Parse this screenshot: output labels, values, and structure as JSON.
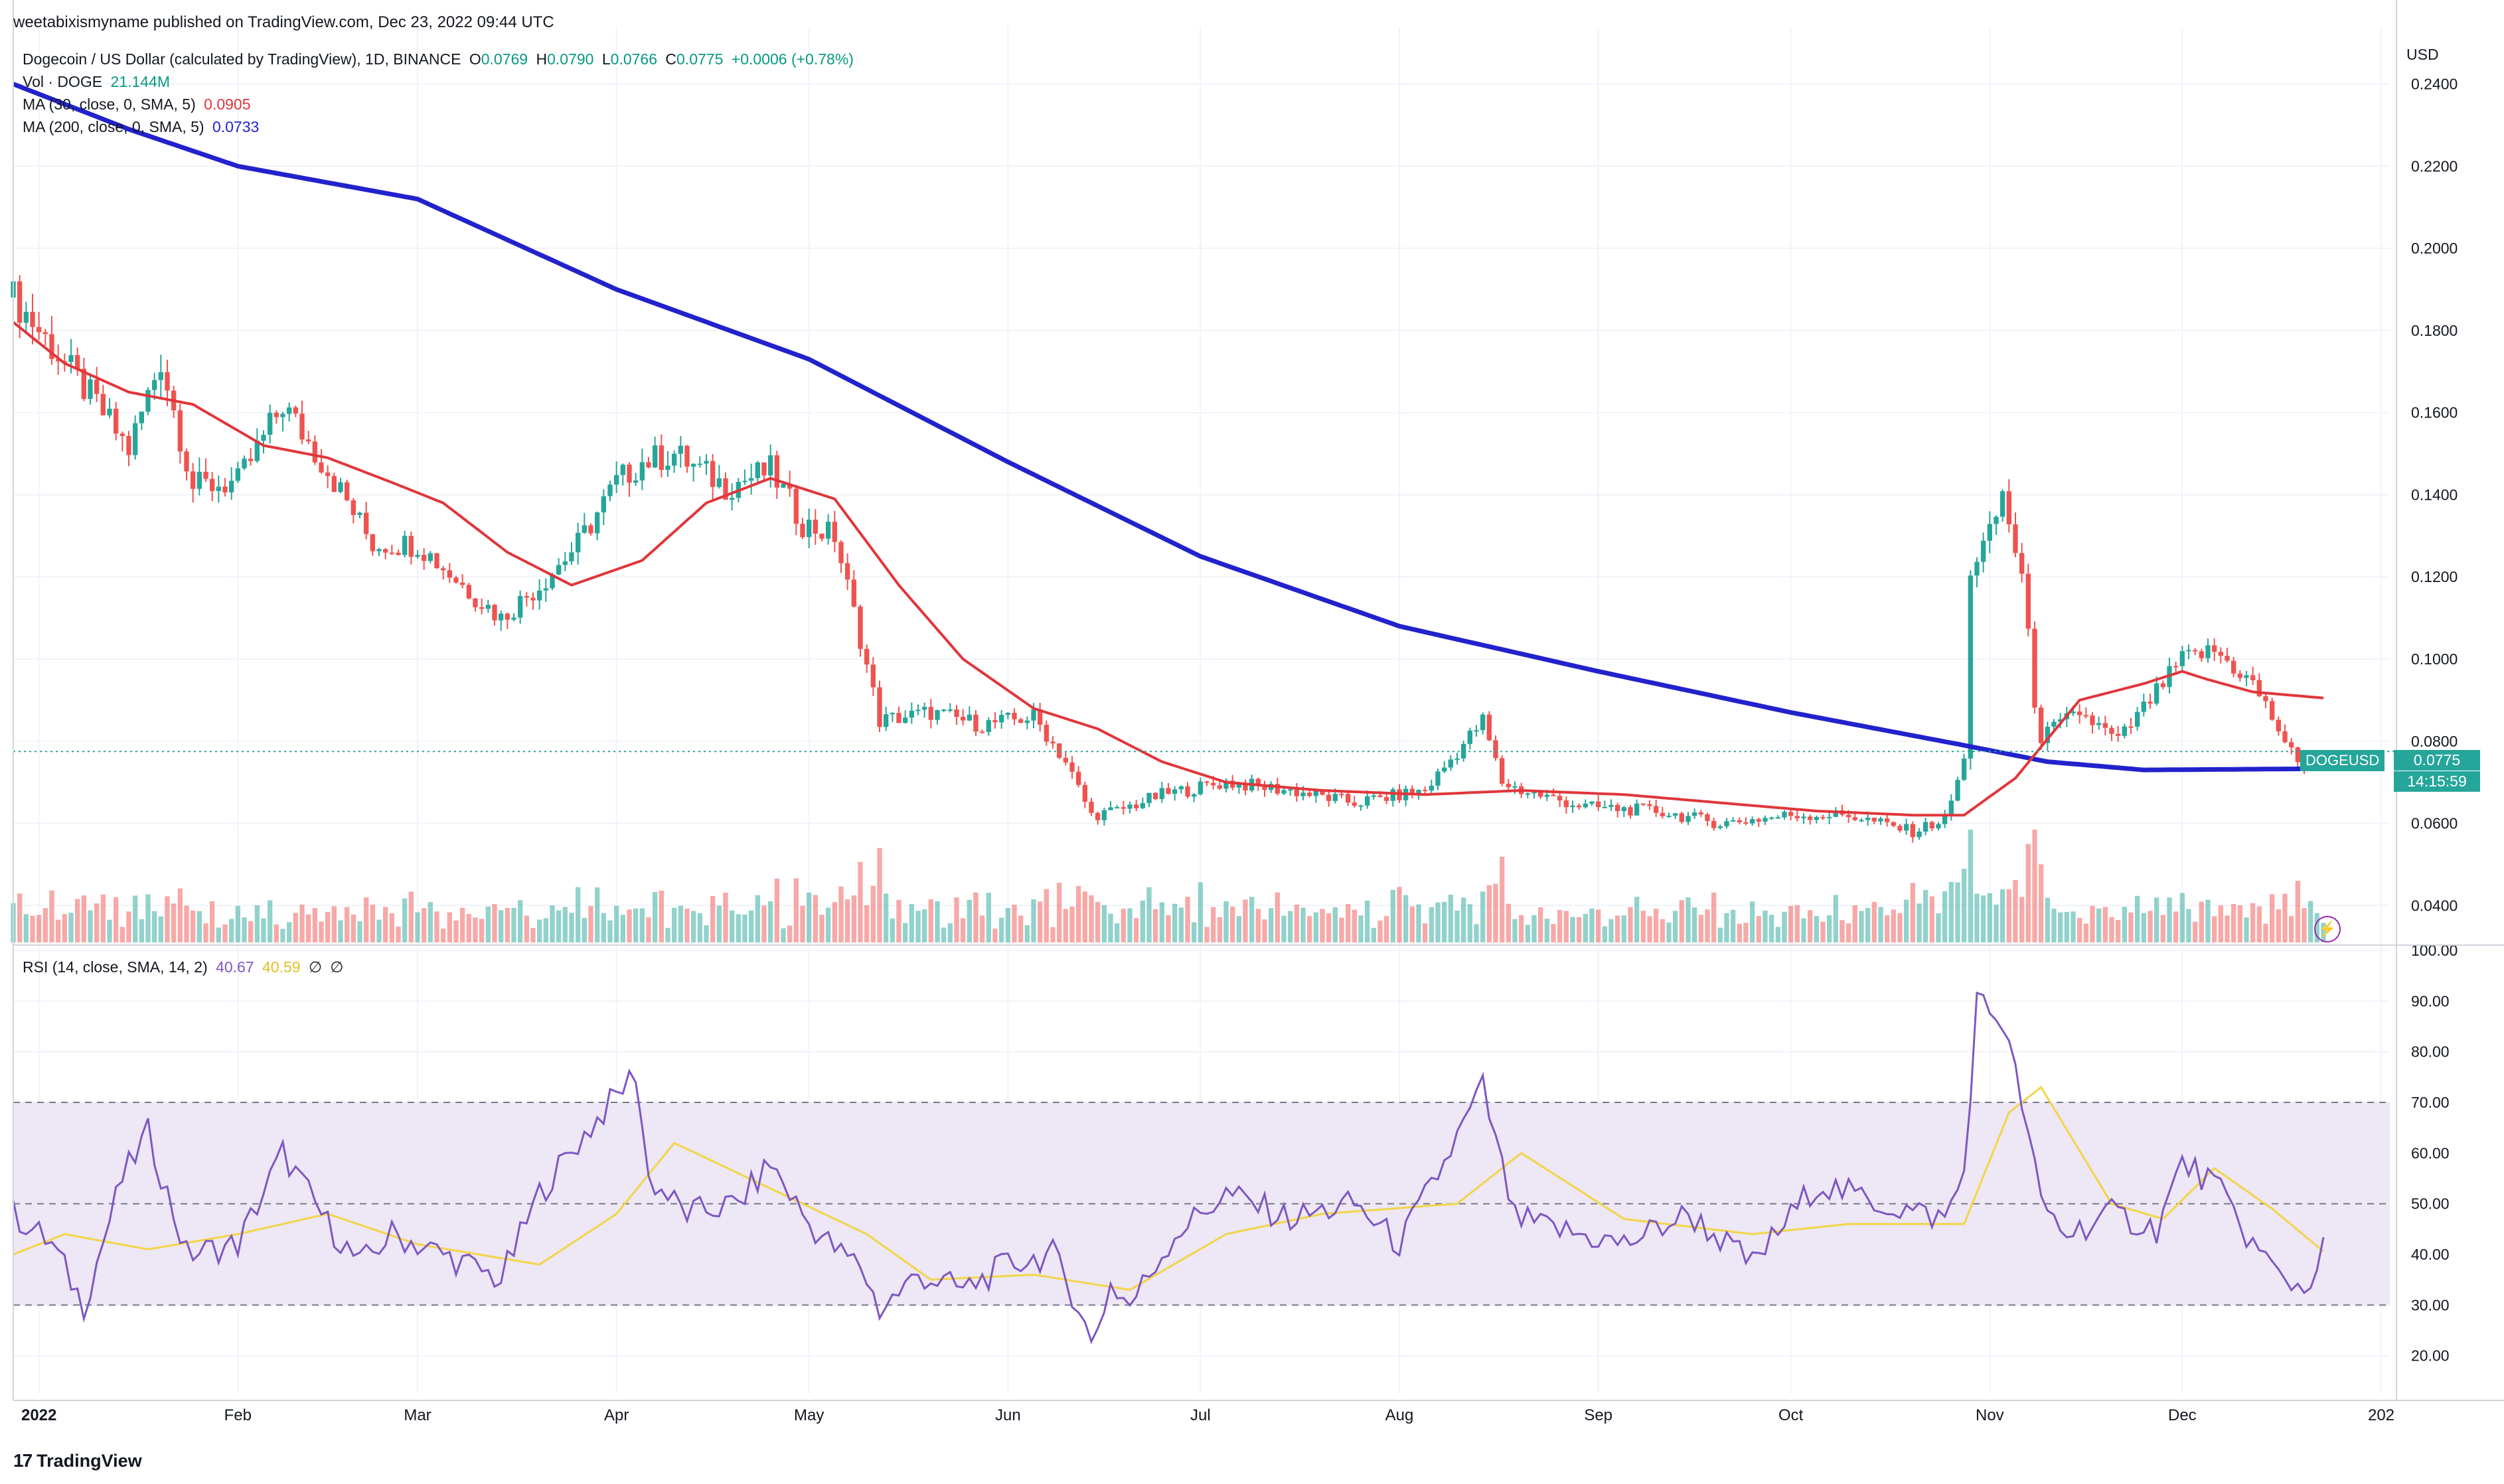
{
  "header": {
    "published": "weetabixismyname published on TradingView.com, Dec 23, 2022 09:44 UTC"
  },
  "legend": {
    "symbol": "Dogecoin / US Dollar (calculated by TradingView), 1D, BINANCE",
    "o_label": "O",
    "o": "0.0769",
    "h_label": "H",
    "h": "0.0790",
    "l_label": "L",
    "l": "0.0766",
    "c_label": "C",
    "c": "0.0775",
    "change": "+0.0006 (+0.78%)",
    "vol_label": "Vol · DOGE",
    "vol": "21.144M",
    "ma30_label": "MA (30, close, 0, SMA, 5)",
    "ma30": "0.0905",
    "ma200_label": "MA (200, close, 0, SMA, 5)",
    "ma200": "0.0733",
    "rsi_label": "RSI (14, close, SMA, 14, 2)",
    "rsi": "40.67",
    "rsi_ma": "40.59",
    "rsi_extra1": "∅",
    "rsi_extra2": "∅"
  },
  "price_tag": {
    "symbol": "DOGEUSD",
    "price": "0.0775",
    "countdown": "14:15:59"
  },
  "footer": {
    "brand": "TradingView",
    "logo": "17"
  },
  "colors": {
    "up": "#26a69a",
    "down": "#ef5350",
    "ma30": "#e0363b",
    "ma200": "#2222cc",
    "rsi": "#7e57c2",
    "rsi_ma": "#f2d547",
    "band": "#ede7f6"
  },
  "chart_data": [
    {
      "type": "candlestick",
      "title": "Dogecoin / US Dollar (calculated by TradingView), 1D, BINANCE",
      "currency": "USD",
      "x_ticks": [
        "2022",
        "Feb",
        "Mar",
        "Apr",
        "May",
        "Jun",
        "Jul",
        "Aug",
        "Sep",
        "Oct",
        "Nov",
        "Dec",
        "202"
      ],
      "y_ticks": [
        "0.2400",
        "0.2200",
        "0.2000",
        "0.1800",
        "0.1600",
        "0.1400",
        "0.1200",
        "0.1000",
        "0.0800",
        "0.0600",
        "0.0400"
      ],
      "ylim": [
        0.031,
        0.254
      ],
      "close_anchors": {
        "x": [
          "2021-12-28",
          "2022-01-05",
          "2022-01-10",
          "2022-01-15",
          "2022-01-20",
          "2022-01-25",
          "2022-02-01",
          "2022-02-08",
          "2022-02-15",
          "2022-02-22",
          "2022-03-01",
          "2022-03-08",
          "2022-03-14",
          "2022-03-20",
          "2022-03-26",
          "2022-04-01",
          "2022-04-05",
          "2022-04-10",
          "2022-04-18",
          "2022-04-25",
          "2022-04-30",
          "2022-05-05",
          "2022-05-09",
          "2022-05-12",
          "2022-05-20",
          "2022-05-28",
          "2022-06-05",
          "2022-06-10",
          "2022-06-14",
          "2022-06-18",
          "2022-06-25",
          "2022-07-05",
          "2022-07-15",
          "2022-07-25",
          "2022-08-05",
          "2022-08-14",
          "2022-08-17",
          "2022-08-20",
          "2022-08-30",
          "2022-09-10",
          "2022-09-20",
          "2022-10-01",
          "2022-10-10",
          "2022-10-20",
          "2022-10-25",
          "2022-10-28",
          "2022-10-29",
          "2022-11-01",
          "2022-11-03",
          "2022-11-06",
          "2022-11-08",
          "2022-11-09",
          "2022-11-15",
          "2022-11-21",
          "2022-11-27",
          "2022-12-01",
          "2022-12-06",
          "2022-12-12",
          "2022-12-16",
          "2022-12-19",
          "2022-12-23"
        ],
        "close": [
          0.188,
          0.172,
          0.162,
          0.151,
          0.173,
          0.142,
          0.143,
          0.162,
          0.146,
          0.128,
          0.128,
          0.118,
          0.11,
          0.118,
          0.128,
          0.143,
          0.148,
          0.15,
          0.142,
          0.146,
          0.133,
          0.13,
          0.105,
          0.085,
          0.087,
          0.084,
          0.086,
          0.075,
          0.062,
          0.063,
          0.067,
          0.07,
          0.068,
          0.065,
          0.068,
          0.085,
          0.07,
          0.068,
          0.064,
          0.063,
          0.06,
          0.062,
          0.062,
          0.058,
          0.061,
          0.075,
          0.122,
          0.13,
          0.14,
          0.12,
          0.09,
          0.081,
          0.087,
          0.08,
          0.092,
          0.1,
          0.102,
          0.094,
          0.083,
          0.074,
          0.0775
        ]
      },
      "ma30_anchors": {
        "x": [
          "2021-12-28",
          "2022-01-05",
          "2022-01-15",
          "2022-01-25",
          "2022-02-05",
          "2022-02-15",
          "2022-02-25",
          "2022-03-05",
          "2022-03-15",
          "2022-03-25",
          "2022-04-05",
          "2022-04-15",
          "2022-04-25",
          "2022-05-05",
          "2022-05-15",
          "2022-05-25",
          "2022-06-05",
          "2022-06-15",
          "2022-06-25",
          "2022-07-05",
          "2022-07-20",
          "2022-08-05",
          "2022-08-20",
          "2022-09-05",
          "2022-09-20",
          "2022-10-05",
          "2022-10-20",
          "2022-10-28",
          "2022-11-05",
          "2022-11-15",
          "2022-11-25",
          "2022-12-01",
          "2022-12-05",
          "2022-12-12",
          "2022-12-23"
        ],
        "values": [
          0.182,
          0.172,
          0.165,
          0.162,
          0.152,
          0.149,
          0.143,
          0.138,
          0.126,
          0.118,
          0.124,
          0.138,
          0.144,
          0.139,
          0.118,
          0.1,
          0.088,
          0.083,
          0.075,
          0.07,
          0.068,
          0.067,
          0.068,
          0.067,
          0.065,
          0.063,
          0.062,
          0.062,
          0.071,
          0.09,
          0.094,
          0.097,
          0.095,
          0.092,
          0.0905
        ]
      },
      "ma200_anchors": {
        "x": [
          "2021-12-28",
          "2022-01-15",
          "2022-02-01",
          "2022-03-01",
          "2022-04-01",
          "2022-05-01",
          "2022-06-01",
          "2022-07-01",
          "2022-08-01",
          "2022-09-01",
          "2022-10-01",
          "2022-10-28",
          "2022-11-10",
          "2022-11-25",
          "2022-12-23"
        ],
        "values": [
          0.24,
          0.229,
          0.22,
          0.212,
          0.19,
          0.173,
          0.148,
          0.125,
          0.108,
          0.097,
          0.087,
          0.079,
          0.075,
          0.073,
          0.0733
        ]
      },
      "volume_unit": "DOGE",
      "last_volume": "21.144M"
    },
    {
      "type": "line",
      "title": "RSI (14, close, SMA, 14, 2)",
      "y_ticks": [
        "100.00",
        "90.00",
        "80.00",
        "70.00",
        "60.00",
        "50.00",
        "40.00",
        "30.00",
        "20.00"
      ],
      "ylim": [
        12.5,
        100
      ],
      "bands": [
        30,
        50,
        70
      ],
      "series": [
        {
          "key": "rsi",
          "x": [
            "2021-12-28",
            "2022-01-03",
            "2022-01-08",
            "2022-01-14",
            "2022-01-18",
            "2022-01-24",
            "2022-02-01",
            "2022-02-08",
            "2022-02-15",
            "2022-02-20",
            "2022-02-25",
            "2022-03-05",
            "2022-03-14",
            "2022-03-20",
            "2022-03-26",
            "2022-04-04",
            "2022-04-06",
            "2022-04-12",
            "2022-04-20",
            "2022-04-25",
            "2022-05-01",
            "2022-05-06",
            "2022-05-09",
            "2022-05-12",
            "2022-05-18",
            "2022-05-25",
            "2022-06-01",
            "2022-06-08",
            "2022-06-12",
            "2022-06-14",
            "2022-06-17",
            "2022-06-20",
            "2022-06-27",
            "2022-07-05",
            "2022-07-15",
            "2022-07-25",
            "2022-08-01",
            "2022-08-08",
            "2022-08-14",
            "2022-08-16",
            "2022-08-19",
            "2022-08-25",
            "2022-09-05",
            "2022-09-15",
            "2022-09-25",
            "2022-10-05",
            "2022-10-15",
            "2022-10-25",
            "2022-10-28",
            "2022-10-30",
            "2022-11-03",
            "2022-11-06",
            "2022-11-09",
            "2022-11-13",
            "2022-11-20",
            "2022-11-27",
            "2022-12-01",
            "2022-12-06",
            "2022-12-12",
            "2022-12-16",
            "2022-12-20",
            "2022-12-23"
          ],
          "values": [
            48,
            42,
            30,
            55,
            64,
            40,
            42,
            60,
            46,
            38,
            44,
            40,
            35,
            52,
            62,
            76,
            55,
            48,
            50,
            58,
            46,
            40,
            38,
            29,
            36,
            33,
            38,
            40,
            30,
            22,
            34,
            30,
            44,
            52,
            47,
            50,
            42,
            58,
            73,
            62,
            47,
            45,
            42,
            48,
            38,
            54,
            50,
            47,
            56,
            90,
            86,
            70,
            50,
            44,
            48,
            45,
            58,
            54,
            42,
            36,
            33,
            40.67
          ]
        },
        {
          "key": "rsi_ma",
          "x": [
            "2021-12-28",
            "2022-01-05",
            "2022-01-18",
            "2022-02-01",
            "2022-02-15",
            "2022-03-01",
            "2022-03-20",
            "2022-04-01",
            "2022-04-10",
            "2022-04-25",
            "2022-05-10",
            "2022-05-20",
            "2022-06-05",
            "2022-06-20",
            "2022-07-05",
            "2022-07-20",
            "2022-08-10",
            "2022-08-20",
            "2022-09-05",
            "2022-09-25",
            "2022-10-10",
            "2022-10-28",
            "2022-11-04",
            "2022-11-09",
            "2022-11-20",
            "2022-11-28",
            "2022-12-06",
            "2022-12-15",
            "2022-12-23"
          ],
          "values": [
            40,
            44,
            41,
            44,
            48,
            42,
            38,
            48,
            62,
            53,
            44,
            35,
            36,
            33,
            44,
            48,
            50,
            60,
            47,
            44,
            46,
            46,
            68,
            73,
            50,
            47,
            57,
            49,
            40.59
          ]
        }
      ]
    }
  ]
}
